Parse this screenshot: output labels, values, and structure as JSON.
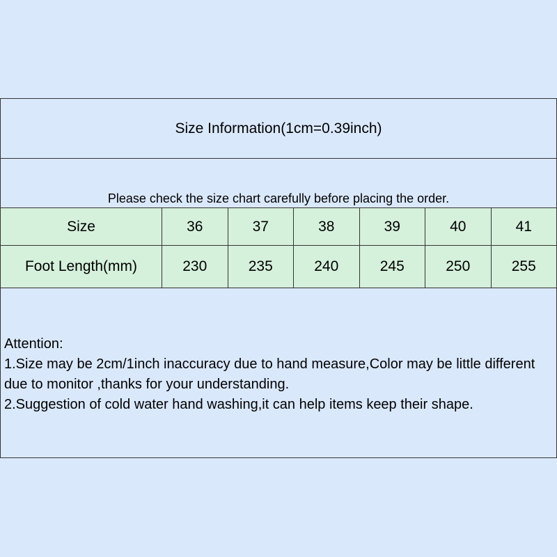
{
  "title": "Size Information(1cm=0.39inch)",
  "notice": "Please check the size chart carefully before placing the order.",
  "table": {
    "rows": [
      {
        "label": "Size",
        "values": [
          "36",
          "37",
          "38",
          "39",
          "40",
          "41"
        ]
      },
      {
        "label": "Foot Length(mm)",
        "values": [
          "230",
          "235",
          "240",
          "245",
          "250",
          "255"
        ]
      }
    ]
  },
  "attention": {
    "heading": "Attention:",
    "lines": [
      "1.Size may be 2cm/1inch inaccuracy due to hand measure,Color may be little different due to monitor ,thanks for your understanding.",
      "2.Suggestion of cold water hand washing,it can help items keep their shape."
    ]
  },
  "colors": {
    "background": "#dae8fc",
    "table_fill": "#d5f0db",
    "border": "#333333"
  }
}
